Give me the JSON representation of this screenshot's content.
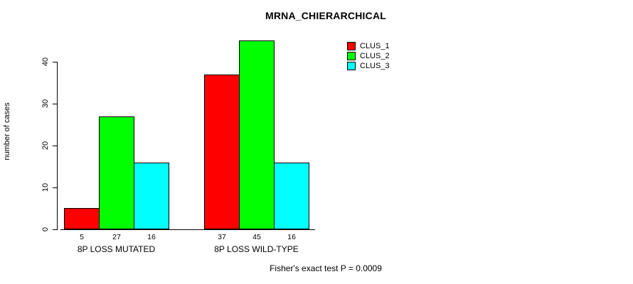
{
  "title": "MRNA_CHIERARCHICAL",
  "footer": "Fisher's exact test P = 0.0009",
  "colors": {
    "clus_1": "#FF0000",
    "clus_2": "#00FF00",
    "clus_3": "#00FFFF",
    "axis": "#000000",
    "background": "#FFFFFF"
  },
  "chart_data": {
    "type": "bar",
    "title": "MRNA_CHIERARCHICAL",
    "xlabel": "",
    "ylabel": "number of cases",
    "categories": [
      "8P LOSS MUTATED",
      "8P LOSS WILD-TYPE"
    ],
    "series": [
      {
        "name": "CLUS_1",
        "color": "#FF0000",
        "values": [
          5,
          37
        ]
      },
      {
        "name": "CLUS_2",
        "color": "#00FF00",
        "values": [
          27,
          45
        ]
      },
      {
        "name": "CLUS_3",
        "color": "#00FFFF",
        "values": [
          16,
          16
        ]
      }
    ],
    "bar_value_labels": [
      [
        5,
        27,
        16
      ],
      [
        37,
        45,
        16
      ]
    ],
    "ylim": [
      0,
      45
    ],
    "yticks": [
      0,
      10,
      20,
      30,
      40
    ],
    "grid": false,
    "legend_position": "top-right",
    "annotation": "Fisher's exact test P = 0.0009"
  }
}
